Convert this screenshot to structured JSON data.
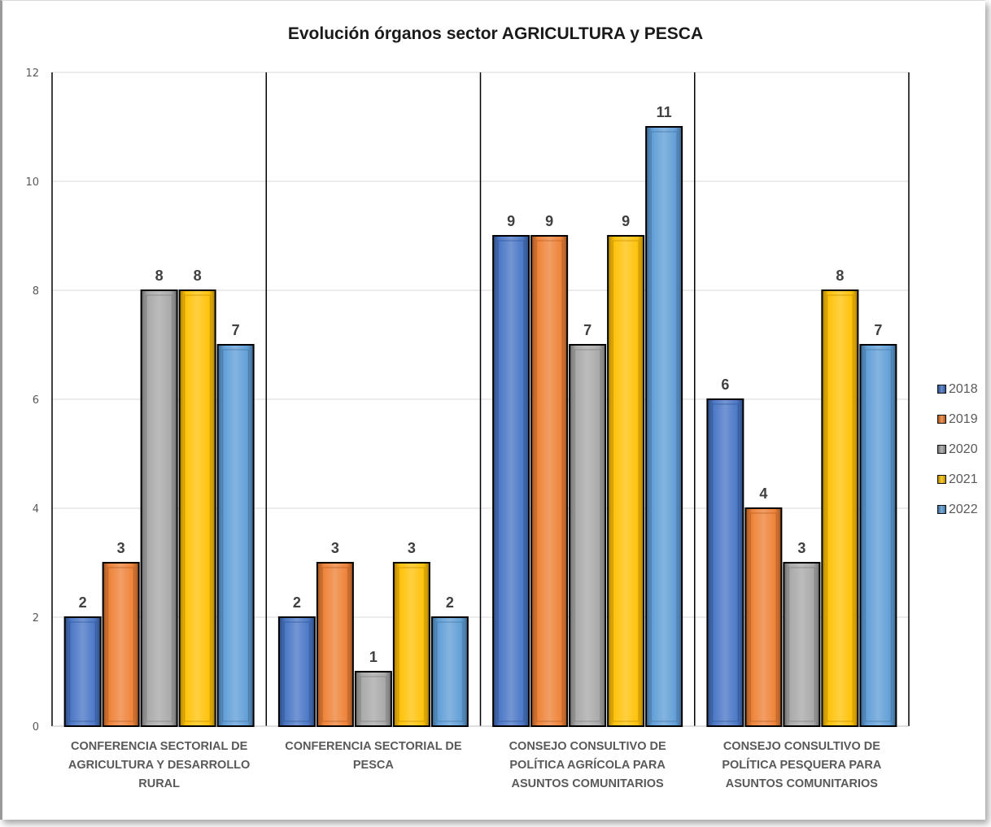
{
  "chart_data": {
    "type": "bar",
    "title": "Evolución órganos sector AGRICULTURA y PESCA",
    "xlabel": "",
    "ylabel": "",
    "ylim": [
      0,
      12
    ],
    "yticks": [
      "0",
      "2",
      "4",
      "6",
      "8",
      "10",
      "12"
    ],
    "grid": true,
    "legend_position": "right",
    "categories": [
      [
        "CONFERENCIA SECTORIAL DE",
        "AGRICULTURA Y DESARROLLO",
        "RURAL"
      ],
      [
        "CONFERENCIA SECTORIAL DE",
        "PESCA"
      ],
      [
        "CONSEJO CONSULTIVO DE",
        "POLÍTICA AGRÍCOLA PARA",
        "ASUNTOS COMUNITARIOS"
      ],
      [
        "CONSEJO CONSULTIVO DE",
        "POLÍTICA PESQUERA PARA",
        "ASUNTOS COMUNITARIOS"
      ]
    ],
    "series": [
      {
        "name": "2018",
        "color": "#4472C4",
        "values": [
          2,
          2,
          9,
          6
        ]
      },
      {
        "name": "2019",
        "color": "#ED7D31",
        "values": [
          3,
          3,
          9,
          4
        ]
      },
      {
        "name": "2020",
        "color": "#A5A5A5",
        "values": [
          8,
          1,
          7,
          3
        ]
      },
      {
        "name": "2021",
        "color": "#FFC000",
        "values": [
          8,
          3,
          9,
          8
        ]
      },
      {
        "name": "2022",
        "color": "#5B9BD5",
        "values": [
          7,
          2,
          11,
          7
        ]
      }
    ]
  }
}
